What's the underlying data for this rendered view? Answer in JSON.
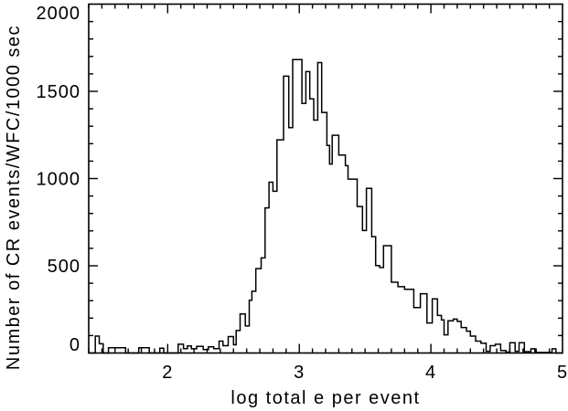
{
  "chart_data": {
    "type": "bar",
    "subtype": "step-histogram",
    "title": "",
    "xlabel": "log total e per event",
    "ylabel": "Number of CR events/WFC/1000 sec",
    "xlim": [
      1.4,
      5.0
    ],
    "ylim": [
      0,
      2000
    ],
    "x_major_ticks": [
      2,
      3,
      4,
      5
    ],
    "x_tick_labels": [
      "2",
      "3",
      "4",
      "5"
    ],
    "x_minor_step": 0.1,
    "y_major_ticks": [
      0,
      500,
      1000,
      1500,
      2000
    ],
    "y_tick_labels": [
      "0",
      "500",
      "1000",
      "1500",
      "2000"
    ],
    "y_minor_step": 100,
    "grid": false,
    "legend": null,
    "line_color": "#000000",
    "background_color": "#ffffff",
    "steps_note": "pairs of [bin left edge x, count]; line is drawn as a step function to the next edge",
    "steps": [
      [
        1.4,
        0
      ],
      [
        1.45,
        97
      ],
      [
        1.48,
        53
      ],
      [
        1.51,
        0
      ],
      [
        1.55,
        30
      ],
      [
        1.68,
        0
      ],
      [
        1.78,
        30
      ],
      [
        1.86,
        0
      ],
      [
        1.94,
        28
      ],
      [
        1.97,
        0
      ],
      [
        2.08,
        50
      ],
      [
        2.12,
        25
      ],
      [
        2.15,
        41
      ],
      [
        2.18,
        24
      ],
      [
        2.22,
        38
      ],
      [
        2.27,
        20
      ],
      [
        2.31,
        35
      ],
      [
        2.35,
        25
      ],
      [
        2.39,
        68
      ],
      [
        2.42,
        42
      ],
      [
        2.46,
        94
      ],
      [
        2.5,
        47
      ],
      [
        2.52,
        129
      ],
      [
        2.55,
        224
      ],
      [
        2.59,
        155
      ],
      [
        2.62,
        302
      ],
      [
        2.64,
        354
      ],
      [
        2.67,
        484
      ],
      [
        2.71,
        545
      ],
      [
        2.74,
        832
      ],
      [
        2.77,
        979
      ],
      [
        2.8,
        927
      ],
      [
        2.83,
        1222
      ],
      [
        2.88,
        1587
      ],
      [
        2.92,
        1292
      ],
      [
        2.95,
        1682
      ],
      [
        3.02,
        1431
      ],
      [
        3.05,
        1613
      ],
      [
        3.08,
        1457
      ],
      [
        3.11,
        1335
      ],
      [
        3.14,
        1665
      ],
      [
        3.17,
        1379
      ],
      [
        3.21,
        1190
      ],
      [
        3.23,
        1083
      ],
      [
        3.25,
        1248
      ],
      [
        3.3,
        1135
      ],
      [
        3.35,
        1074
      ],
      [
        3.37,
        997
      ],
      [
        3.44,
        840
      ],
      [
        3.48,
        702
      ],
      [
        3.51,
        944
      ],
      [
        3.55,
        667
      ],
      [
        3.58,
        501
      ],
      [
        3.61,
        490
      ],
      [
        3.64,
        615
      ],
      [
        3.7,
        406
      ],
      [
        3.75,
        380
      ],
      [
        3.8,
        365
      ],
      [
        3.87,
        260
      ],
      [
        3.92,
        340
      ],
      [
        3.97,
        172
      ],
      [
        4.01,
        310
      ],
      [
        4.05,
        215
      ],
      [
        4.08,
        190
      ],
      [
        4.1,
        104
      ],
      [
        4.13,
        185
      ],
      [
        4.17,
        194
      ],
      [
        4.2,
        181
      ],
      [
        4.23,
        146
      ],
      [
        4.27,
        125
      ],
      [
        4.3,
        97
      ],
      [
        4.34,
        68
      ],
      [
        4.38,
        56
      ],
      [
        4.42,
        10
      ],
      [
        4.45,
        42
      ],
      [
        4.49,
        50
      ],
      [
        4.53,
        14
      ],
      [
        4.57,
        5
      ],
      [
        4.6,
        59
      ],
      [
        4.64,
        10
      ],
      [
        4.67,
        59
      ],
      [
        4.71,
        8
      ],
      [
        4.76,
        24
      ],
      [
        4.79,
        3
      ],
      [
        4.92,
        24
      ],
      [
        4.95,
        0
      ]
    ]
  }
}
